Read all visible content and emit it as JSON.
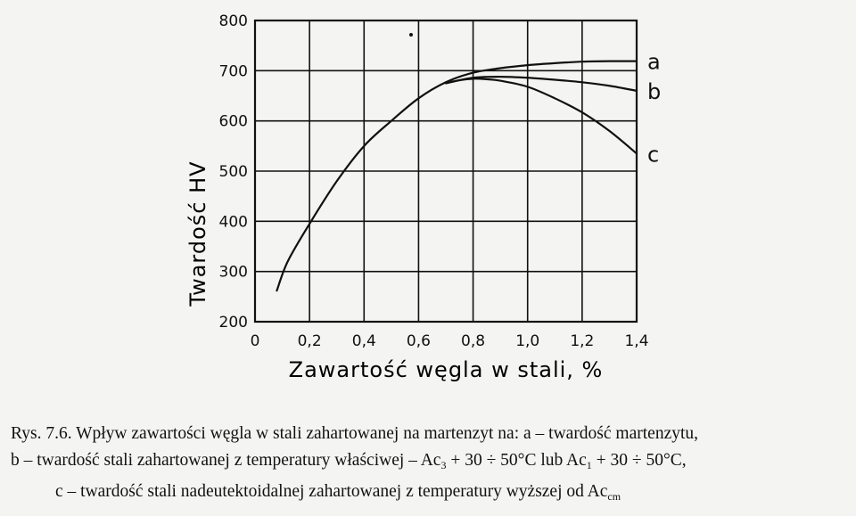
{
  "chart_data": {
    "type": "line",
    "ylabel": "Twardość HV",
    "xlabel": "Zawartość węgla w stali, %",
    "xlim": [
      0,
      1.4
    ],
    "ylim": [
      200,
      800
    ],
    "x_ticks": [
      "0",
      "0,2",
      "0,4",
      "0,6",
      "0,8",
      "1,0",
      "1,2",
      "1,4"
    ],
    "y_ticks": [
      "200",
      "300",
      "400",
      "500",
      "600",
      "700",
      "800"
    ],
    "grid": true,
    "series": [
      {
        "name": "a",
        "x": [
          0.08,
          0.12,
          0.2,
          0.3,
          0.4,
          0.5,
          0.6,
          0.7,
          0.8,
          0.9,
          1.0,
          1.1,
          1.2,
          1.3,
          1.4
        ],
        "values": [
          262,
          320,
          395,
          480,
          550,
          600,
          645,
          677,
          696,
          705,
          711,
          715,
          718,
          719,
          719
        ]
      },
      {
        "name": "b",
        "x": [
          0.7,
          0.8,
          0.9,
          1.0,
          1.1,
          1.2,
          1.3,
          1.4
        ],
        "values": [
          675,
          686,
          688,
          686,
          682,
          677,
          670,
          660
        ]
      },
      {
        "name": "c",
        "x": [
          0.7,
          0.75,
          0.8,
          0.85,
          0.9,
          1.0,
          1.1,
          1.2,
          1.3,
          1.4
        ],
        "values": [
          675,
          681,
          684,
          683,
          680,
          668,
          645,
          617,
          580,
          535
        ]
      }
    ]
  },
  "caption": {
    "line1": "Rys. 7.6. Wpływ zawartości węgla w stali zahartowanej na martenzyt na: a – twardość martenzytu,",
    "line2a": "b – twardość stali zahartowanej z temperatury właściwej – Ac",
    "line2b": "3",
    "line2c": " + 30 ÷ 50°C lub Ac",
    "line2d": "1",
    "line2e": " + 30 ÷ 50°C,",
    "line3a": "c – twardość stali nadeutektoidalnej zahartowanej z temperatury wyższej od Ac",
    "line3b": "cm"
  },
  "colors": {
    "ink": "#111111",
    "paper": "#f4f4f2"
  }
}
